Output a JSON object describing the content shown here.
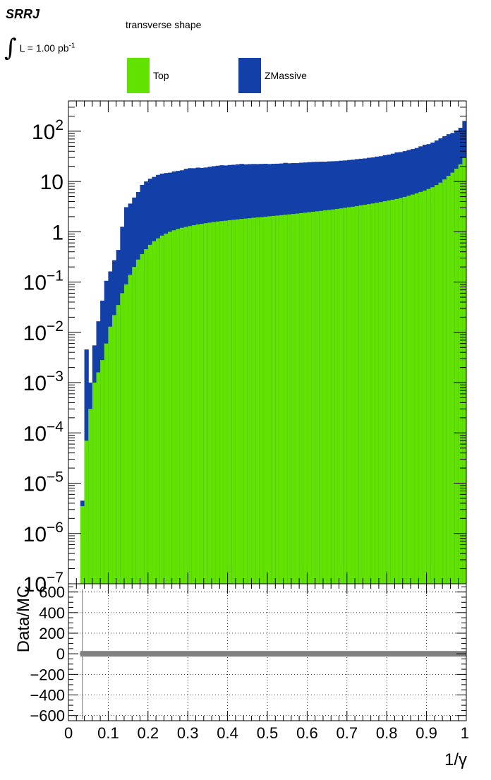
{
  "header": {
    "label": "SRRJ",
    "lumi_symbol": "∫",
    "lumi_text": "L = 1.00 pb",
    "lumi_sup": "-1"
  },
  "legend": {
    "title": "transverse shape",
    "entries": [
      {
        "name": "Top",
        "color": "#62e200"
      },
      {
        "name": "ZMassive",
        "color": "#1340a8"
      }
    ]
  },
  "chart_data": [
    {
      "type": "bar",
      "stacked": true,
      "yscale": "log",
      "ylim": [
        1e-07,
        400
      ],
      "xlim": [
        0,
        1
      ],
      "bins": 100,
      "y_tick_labels": [
        {
          "base": "10",
          "exp": "2"
        },
        {
          "base": "10",
          "exp": ""
        },
        {
          "base": "1",
          "exp": ""
        },
        {
          "base": "10",
          "exp": "−1"
        },
        {
          "base": "10",
          "exp": "−2"
        },
        {
          "base": "10",
          "exp": "−3"
        },
        {
          "base": "10",
          "exp": "−4"
        },
        {
          "base": "10",
          "exp": "−5"
        },
        {
          "base": "10",
          "exp": "−6"
        },
        {
          "base": "10",
          "exp": "−7"
        }
      ],
      "x_min_nonzero": 0.03,
      "series": [
        {
          "name": "Top",
          "values": [
            0,
            0,
            0,
            3.5e-06,
            7e-05,
            0.0003,
            0.001,
            0.0016,
            0.0028,
            0.006,
            0.013,
            0.022,
            0.035,
            0.06,
            0.09,
            0.14,
            0.2,
            0.28,
            0.36,
            0.45,
            0.55,
            0.65,
            0.74,
            0.84,
            0.92,
            1.0,
            1.07,
            1.14,
            1.2,
            1.25,
            1.3,
            1.35,
            1.4,
            1.44,
            1.48,
            1.52,
            1.56,
            1.6,
            1.63,
            1.66,
            1.7,
            1.73,
            1.76,
            1.8,
            1.83,
            1.86,
            1.9,
            1.93,
            1.96,
            2.0,
            2.03,
            2.07,
            2.1,
            2.14,
            2.18,
            2.22,
            2.26,
            2.3,
            2.35,
            2.4,
            2.45,
            2.5,
            2.55,
            2.6,
            2.66,
            2.72,
            2.78,
            2.85,
            2.92,
            3.0,
            3.08,
            3.16,
            3.25,
            3.35,
            3.45,
            3.55,
            3.66,
            3.78,
            3.9,
            4.05,
            4.2,
            4.35,
            4.5,
            4.7,
            4.95,
            5.2,
            5.5,
            5.8,
            6.2,
            6.6,
            7.1,
            7.7,
            8.5,
            9.5,
            11,
            13,
            15,
            18,
            22,
            30
          ]
        },
        {
          "name": "ZMassive",
          "values": [
            0,
            0,
            0,
            1e-06,
            0.0045,
            0.0007,
            0.0045,
            0.015,
            0.04,
            0.1,
            0.15,
            0.25,
            0.4,
            1.2,
            3.0,
            3.5,
            4.6,
            5.9,
            8.2,
            9.6,
            10.8,
            11.7,
            12.8,
            13.5,
            13.8,
            14.0,
            14.8,
            15.1,
            15.5,
            16.6,
            17.1,
            17.0,
            17.5,
            17.2,
            17.5,
            18.1,
            18.6,
            19.0,
            19.4,
            19.2,
            19.6,
            19.8,
            20.2,
            20.6,
            20.1,
            20.3,
            20.4,
            20.3,
            20.4,
            20.5,
            20.2,
            20.4,
            20.5,
            20.7,
            21.3,
            20.8,
            21.0,
            20.9,
            21.3,
            21.5,
            21.8,
            22.0,
            22.1,
            22.2,
            22.1,
            22.4,
            22.5,
            22.6,
            23.0,
            23.2,
            23.7,
            24.0,
            24.6,
            25.0,
            25.3,
            26.1,
            26.5,
            27.5,
            28.0,
            29.3,
            30.1,
            31.4,
            33.5,
            33.8,
            35.2,
            37.1,
            38.8,
            40.6,
            43.8,
            47.2,
            48.3,
            51.8,
            57.0,
            62.7,
            68.5,
            74.1,
            77.5,
            85.2,
            95.2,
            130
          ]
        }
      ]
    },
    {
      "type": "scatter",
      "ylabel": "Data/MC",
      "xlabel": "1/γ",
      "xlim": [
        0,
        1
      ],
      "ylim": [
        -650,
        680
      ],
      "grid": true,
      "y_ticks": [
        600,
        400,
        200,
        0,
        -200,
        -400,
        -600
      ],
      "y_tick_labels": [
        "600",
        "400",
        "200",
        "0",
        "−200",
        "−400",
        "−600"
      ],
      "x_ticks": [
        0,
        0.1,
        0.2,
        0.3,
        0.4,
        0.5,
        0.6,
        0.7,
        0.8,
        0.9,
        1
      ],
      "x_tick_labels": [
        "0",
        "0.1",
        "0.2",
        "0.3",
        "0.4",
        "0.5",
        "0.6",
        "0.7",
        "0.8",
        "0.9",
        "1"
      ],
      "band": {
        "value": 0,
        "from": 0.03,
        "to": 1.0,
        "color": "#808080"
      },
      "marker_line_x": 0.035
    }
  ]
}
